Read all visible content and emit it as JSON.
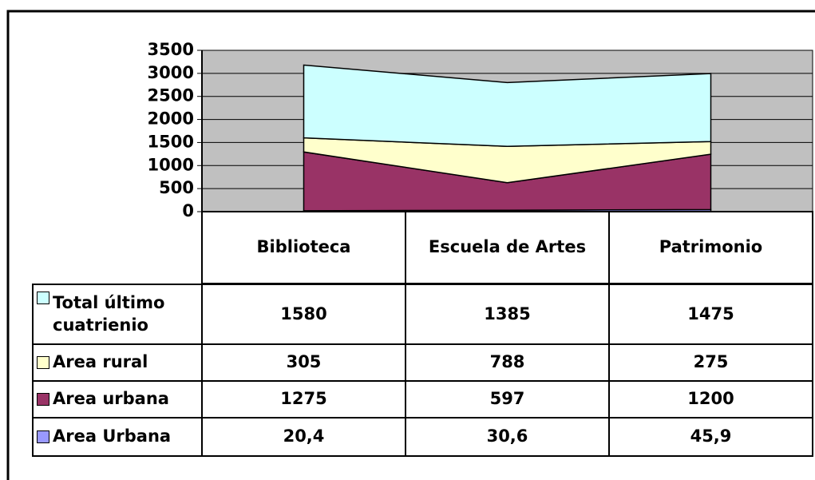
{
  "chart_data": {
    "type": "stacked_area",
    "categories": [
      "Biblioteca",
      "Escuela de Artes",
      "Patrimonio"
    ],
    "series": [
      {
        "name": "Total último cuatrienio",
        "color": "#ccffff",
        "values": [
          1580,
          1385,
          1475
        ]
      },
      {
        "name": "Area rural",
        "color": "#ffffcc",
        "values": [
          305,
          788,
          275
        ]
      },
      {
        "name": "Area urbana",
        "color": "#993366",
        "values": [
          1275,
          597,
          1200
        ]
      },
      {
        "name": "Area Urbana",
        "color": "#9999ff",
        "values": [
          20.4,
          30.6,
          45.9
        ],
        "value_labels": [
          "20,4",
          "30,6",
          "45,9"
        ]
      }
    ],
    "ylim": [
      0,
      3500
    ],
    "yticks": [
      0,
      500,
      1000,
      1500,
      2000,
      2500,
      3000,
      3500
    ],
    "grid": true,
    "plot_color": "#c0c0c0"
  }
}
